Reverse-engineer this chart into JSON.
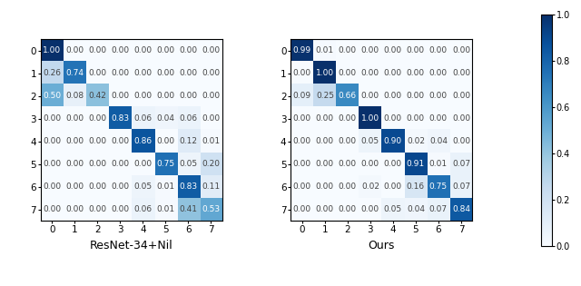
{
  "matrix1": [
    [
      1.0,
      0.0,
      0.0,
      0.0,
      0.0,
      0.0,
      0.0,
      0.0
    ],
    [
      0.26,
      0.74,
      0.0,
      0.0,
      0.0,
      0.0,
      0.0,
      0.0
    ],
    [
      0.5,
      0.08,
      0.42,
      0.0,
      0.0,
      0.0,
      0.0,
      0.0
    ],
    [
      0.0,
      0.0,
      0.0,
      0.83,
      0.06,
      0.04,
      0.06,
      0.0
    ],
    [
      0.0,
      0.0,
      0.0,
      0.0,
      0.86,
      0.0,
      0.12,
      0.01
    ],
    [
      0.0,
      0.0,
      0.0,
      0.0,
      0.0,
      0.75,
      0.05,
      0.2
    ],
    [
      0.0,
      0.0,
      0.0,
      0.0,
      0.05,
      0.01,
      0.83,
      0.11
    ],
    [
      0.0,
      0.0,
      0.0,
      0.0,
      0.06,
      0.01,
      0.41,
      0.53
    ]
  ],
  "matrix2": [
    [
      0.99,
      0.01,
      0.0,
      0.0,
      0.0,
      0.0,
      0.0,
      0.0
    ],
    [
      0.0,
      1.0,
      0.0,
      0.0,
      0.0,
      0.0,
      0.0,
      0.0
    ],
    [
      0.09,
      0.25,
      0.66,
      0.0,
      0.0,
      0.0,
      0.0,
      0.0
    ],
    [
      0.0,
      0.0,
      0.0,
      1.0,
      0.0,
      0.0,
      0.0,
      0.0
    ],
    [
      0.0,
      0.0,
      0.0,
      0.05,
      0.9,
      0.02,
      0.04,
      0.0
    ],
    [
      0.0,
      0.0,
      0.0,
      0.0,
      0.0,
      0.91,
      0.01,
      0.07
    ],
    [
      0.0,
      0.0,
      0.0,
      0.02,
      0.0,
      0.16,
      0.75,
      0.07
    ],
    [
      0.0,
      0.0,
      0.0,
      0.0,
      0.05,
      0.04,
      0.07,
      0.84
    ]
  ],
  "title1": "ResNet-34+Nil",
  "title2": "Ours",
  "tick_labels": [
    "0",
    "1",
    "2",
    "3",
    "4",
    "5",
    "6",
    "7"
  ],
  "vmin": 0.0,
  "vmax": 1.0,
  "cmap": "Blues",
  "fontsize_cell": 6.5,
  "fontsize_title": 9,
  "fontsize_tick": 7.5,
  "text_thresh": 0.5,
  "text_color_dark": "white",
  "text_color_light": "#444444",
  "colorbar_ticks": [
    0.0,
    0.2,
    0.4,
    0.6,
    0.8,
    1.0
  ],
  "colorbar_ticklabels": [
    "0.0",
    "0.2",
    "0.4",
    "0.6",
    "0.8",
    "1.0"
  ]
}
